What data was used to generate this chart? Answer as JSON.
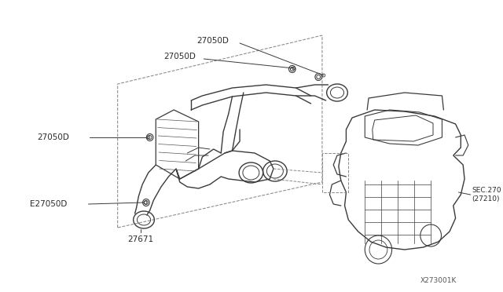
{
  "bg_color": "#ffffff",
  "line_color": "#3a3a3a",
  "dashed_color": "#666666",
  "label_color": "#2a2a2a",
  "figsize": [
    6.4,
    3.72
  ],
  "dpi": 100,
  "labels": {
    "27050D_top1": [
      0.398,
      0.92,
      "27050D"
    ],
    "27050D_top2": [
      0.34,
      0.865,
      "27050D"
    ],
    "27050D_left": [
      0.095,
      0.62,
      "27050D"
    ],
    "E27050D": [
      0.065,
      0.43,
      "E27050D"
    ],
    "27671": [
      0.218,
      0.1,
      "27671"
    ],
    "sec270": [
      0.752,
      0.408,
      "SEC.270\n(27210)"
    ],
    "diagram_num": [
      0.96,
      0.055,
      "X273001K"
    ]
  }
}
